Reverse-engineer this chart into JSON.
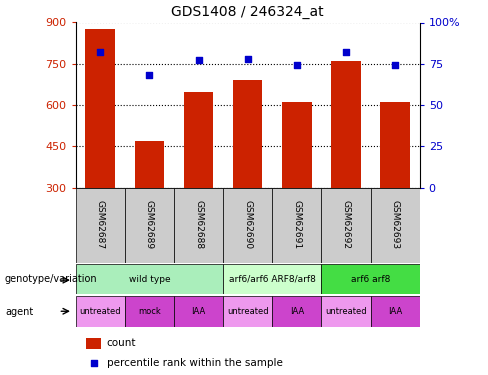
{
  "title": "GDS1408 / 246324_at",
  "samples": [
    "GSM62687",
    "GSM62689",
    "GSM62688",
    "GSM62690",
    "GSM62691",
    "GSM62692",
    "GSM62693"
  ],
  "counts": [
    875,
    468,
    648,
    690,
    610,
    760,
    610
  ],
  "percentiles": [
    82,
    68,
    77,
    78,
    74,
    82,
    74
  ],
  "ylim_left": [
    300,
    900
  ],
  "ylim_right": [
    0,
    100
  ],
  "yticks_left": [
    300,
    450,
    600,
    750,
    900
  ],
  "yticks_right": [
    0,
    25,
    50,
    75,
    100
  ],
  "ytick_labels_right": [
    "0",
    "25",
    "50",
    "75",
    "100%"
  ],
  "bar_color": "#cc2200",
  "dot_color": "#0000cc",
  "background_color": "#ffffff",
  "title_fontsize": 10,
  "genotype_rows": [
    {
      "label": "wild type",
      "start": 0,
      "end": 3,
      "color": "#aaeebb"
    },
    {
      "label": "arf6/arf6 ARF8/arf8",
      "start": 3,
      "end": 5,
      "color": "#ccffcc"
    },
    {
      "label": "arf6 arf8",
      "start": 5,
      "end": 7,
      "color": "#44dd44"
    }
  ],
  "agent_rows": [
    {
      "label": "untreated",
      "start": 0,
      "end": 1,
      "color": "#ee99ee"
    },
    {
      "label": "mock",
      "start": 1,
      "end": 2,
      "color": "#cc44cc"
    },
    {
      "label": "IAA",
      "start": 2,
      "end": 3,
      "color": "#cc44cc"
    },
    {
      "label": "untreated",
      "start": 3,
      "end": 4,
      "color": "#ee99ee"
    },
    {
      "label": "IAA",
      "start": 4,
      "end": 5,
      "color": "#cc44cc"
    },
    {
      "label": "untreated",
      "start": 5,
      "end": 6,
      "color": "#ee99ee"
    },
    {
      "label": "IAA",
      "start": 6,
      "end": 7,
      "color": "#cc44cc"
    }
  ],
  "sample_box_color": "#cccccc",
  "legend_count_color": "#cc2200",
  "legend_dot_color": "#0000cc"
}
